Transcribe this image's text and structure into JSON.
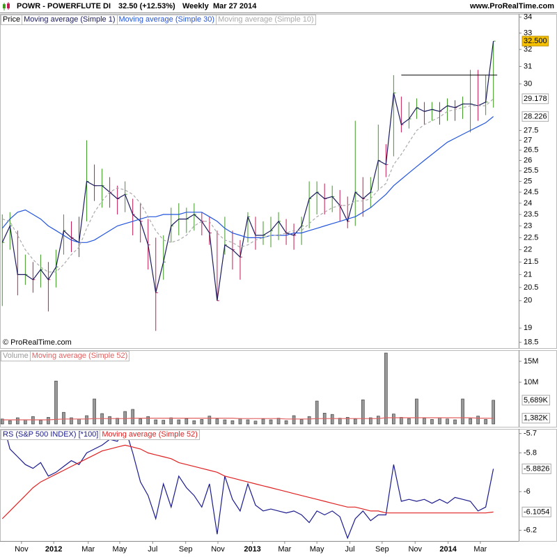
{
  "header": {
    "ticker": "POWR - POWERFLUTE DI",
    "quote": "32.50 (+12.53%)",
    "period": "Weekly",
    "date": "Mar 27 2014",
    "site": "www.ProRealTime.com",
    "copyright": "© ProRealTime.com"
  },
  "chart_data": [
    {
      "type": "ohlc",
      "name": "Price",
      "log": true,
      "up_color": "#3c9a22",
      "down_color": "#c41a52",
      "ylim": [
        18.3,
        34.2
      ],
      "xlim": [
        -0.3,
        67.3
      ],
      "yticks": [
        34,
        33,
        32,
        31,
        30,
        27.5,
        27,
        26.5,
        26,
        25.5,
        25,
        24.5,
        24,
        23.5,
        23,
        22.5,
        22,
        21.5,
        21,
        20.5,
        20,
        19,
        18.5
      ],
      "high": [
        23.5,
        23.6,
        22.8,
        21.8,
        21.5,
        21.8,
        21.5,
        22,
        23.5,
        23.2,
        23.4,
        27,
        25.8,
        25.6,
        25.2,
        24.8,
        25,
        24.2,
        24,
        23.3,
        22.5,
        22.6,
        23.8,
        24,
        23.8,
        24,
        23.6,
        23.4,
        22.8,
        23.4,
        22.8,
        22.4,
        23.6,
        23.4,
        23.2,
        23.4,
        23.6,
        23.3,
        23.1,
        23.4,
        25,
        25,
        24.9,
        24.8,
        24.6,
        24.3,
        28,
        25.2,
        25.2,
        27.8,
        26.8,
        30.5,
        29.3,
        29,
        29.2,
        29,
        29,
        29,
        29.2,
        29.1,
        29.3,
        30.8,
        30.8,
        30.5,
        32.5
      ],
      "low": [
        19.8,
        22,
        20.2,
        20.6,
        20.3,
        20.5,
        19.6,
        20.5,
        21.8,
        21.9,
        21.7,
        23.2,
        24.1,
        23.8,
        23.8,
        23.5,
        23.6,
        22.6,
        22.3,
        21.2,
        18.9,
        20.8,
        22.3,
        22.6,
        22.7,
        22.8,
        22.6,
        22.2,
        20,
        21.8,
        21.2,
        20.8,
        22.3,
        22,
        22.2,
        22.1,
        22.4,
        22.2,
        22,
        22.2,
        22.9,
        23.5,
        23.5,
        23.6,
        23.2,
        22.9,
        23,
        23.4,
        23.8,
        24.6,
        25.2,
        26.2,
        27.4,
        27.6,
        28.1,
        27.8,
        28,
        27.8,
        28,
        28,
        28.1,
        27.4,
        28,
        28.3,
        28.7
      ],
      "trendline": {
        "value": 30.5,
        "x": [
          52,
          64.5
        ]
      },
      "series": [
        {
          "name": "Moving average (Simple 1)",
          "color": "#1a1a5e",
          "last_label": "32.500",
          "values": [
            22.3,
            23,
            21,
            21,
            20.8,
            21.2,
            20.8,
            21.3,
            22.8,
            22.5,
            22.3,
            25,
            24.8,
            24.8,
            24.5,
            24.2,
            24.4,
            23.5,
            23.2,
            22.2,
            20.3,
            21.5,
            23,
            23.3,
            23.3,
            23.5,
            23.2,
            22.7,
            20,
            22.2,
            22,
            21.7,
            23.4,
            22.6,
            22.6,
            22.8,
            23.2,
            22.7,
            22.6,
            23,
            24.2,
            24.5,
            24.2,
            24.3,
            23.9,
            23.2,
            24.5,
            24.2,
            24.5,
            26,
            25.8,
            29.5,
            27.8,
            28.1,
            28.7,
            28.5,
            28.6,
            28.5,
            28.8,
            28.7,
            28.9,
            28.9,
            28.8,
            29,
            32.5
          ]
        },
        {
          "name": "Moving average (Simple 30)",
          "color": "#2255dd",
          "values": [
            22.9,
            23.3,
            23.6,
            23.7,
            23.5,
            23.3,
            23.0,
            22.8,
            22.6,
            22.4,
            22.3,
            22.3,
            22.4,
            22.6,
            22.8,
            23.0,
            23.1,
            23.2,
            23.3,
            23.4,
            23.4,
            23.5,
            23.5,
            23.5,
            23.6,
            23.6,
            23.6,
            23.4,
            23.2,
            22.9,
            22.7,
            22.6,
            22.5,
            22.5,
            22.5,
            22.6,
            22.6,
            22.6,
            22.7,
            22.7,
            22.8,
            22.9,
            23.0,
            23.1,
            23.2,
            23.3,
            23.4,
            23.6,
            23.8,
            24.1,
            24.4,
            24.8,
            25.1,
            25.4,
            25.7,
            26.0,
            26.3,
            26.6,
            26.9,
            27.1,
            27.3,
            27.5,
            27.7,
            27.9,
            28.226
          ]
        },
        {
          "name": "Moving average (Simple 10)",
          "color": "#aaaaaa",
          "dashed": true,
          "values": [
            23.3,
            23.2,
            22.6,
            22.0,
            21.6,
            21.3,
            21.1,
            21.1,
            21.4,
            21.8,
            22.1,
            22.9,
            23.6,
            24.1,
            24.5,
            24.7,
            24.6,
            24.4,
            24.0,
            23.4,
            22.8,
            22.4,
            22.3,
            22.4,
            22.6,
            23.0,
            23.2,
            23.2,
            22.7,
            22.4,
            22.3,
            22.1,
            22.2,
            22.4,
            22.5,
            22.6,
            22.6,
            22.7,
            22.8,
            22.8,
            23.1,
            23.4,
            23.6,
            23.8,
            23.9,
            23.9,
            24.1,
            24.1,
            24.2,
            24.6,
            24.9,
            25.8,
            26.3,
            26.9,
            27.5,
            27.8,
            28.0,
            28.2,
            28.5,
            28.6,
            28.7,
            28.8,
            28.8,
            28.8,
            29.178
          ]
        }
      ]
    },
    {
      "type": "bar",
      "name": "Volume",
      "color": "#999999",
      "ylim": [
        -0.67,
        17.67
      ],
      "xlim": [
        -0.3,
        67.3
      ],
      "yticks": [
        {
          "value": 15,
          "label": "15M"
        },
        {
          "value": 10,
          "label": "10M"
        }
      ],
      "values": [
        1.2,
        0.8,
        1.5,
        1.0,
        1.8,
        0.9,
        1.6,
        10.3,
        2.8,
        1.5,
        1.2,
        2.0,
        6.0,
        2.5,
        1.8,
        1.4,
        3.0,
        3.5,
        1.2,
        1.8,
        1.0,
        0.9,
        1.5,
        1.0,
        1.3,
        0.8,
        1.1,
        1.9,
        1.2,
        1.0,
        0.8,
        1.3,
        1.0,
        0.7,
        1.2,
        1.0,
        1.4,
        0.8,
        2.0,
        1.1,
        1.8,
        5.5,
        2.6,
        2.3,
        1.4,
        1.6,
        1.2,
        5.8,
        1.5,
        1.9,
        17.0,
        2.4,
        1.6,
        1.3,
        6.0,
        1.4,
        1.1,
        1.5,
        1.2,
        1.0,
        6.0,
        1.3,
        1.9,
        1.1,
        5.689
      ],
      "last_label": "5,689K",
      "series": [
        {
          "name": "Moving average (Simple 52)",
          "color": "#e06060",
          "last_label": "1,382K",
          "values": [
            1.0,
            1.0,
            1.0,
            1.0,
            1.0,
            1.0,
            1.0,
            1.1,
            1.2,
            1.2,
            1.2,
            1.2,
            1.3,
            1.3,
            1.3,
            1.3,
            1.3,
            1.4,
            1.4,
            1.4,
            1.4,
            1.4,
            1.4,
            1.4,
            1.4,
            1.4,
            1.4,
            1.4,
            1.4,
            1.4,
            1.4,
            1.3,
            1.3,
            1.3,
            1.3,
            1.3,
            1.3,
            1.2,
            1.2,
            1.2,
            1.2,
            1.3,
            1.3,
            1.3,
            1.3,
            1.3,
            1.3,
            1.3,
            1.3,
            1.3,
            1.5,
            1.5,
            1.5,
            1.5,
            1.5,
            1.5,
            1.5,
            1.5,
            1.5,
            1.5,
            1.5,
            1.5,
            1.4,
            1.4,
            1.382
          ]
        }
      ]
    },
    {
      "type": "line",
      "ylim": [
        -6.255,
        -5.676
      ],
      "xlim": [
        -0.3,
        67.3
      ],
      "yticks": [
        -5.7,
        -5.8,
        -6,
        -6.2
      ],
      "xticks": [
        {
          "value": 2.5,
          "label": "Nov"
        },
        {
          "value": 6.7,
          "label": "2012"
        },
        {
          "value": 11.2,
          "label": "Mar"
        },
        {
          "value": 15.3,
          "label": "May"
        },
        {
          "value": 19.6,
          "label": "Jul"
        },
        {
          "value": 23.9,
          "label": "Sep"
        },
        {
          "value": 28.1,
          "label": "Nov"
        },
        {
          "value": 32.6,
          "label": "2013"
        },
        {
          "value": 36.8,
          "label": "Mar"
        },
        {
          "value": 41.0,
          "label": "May"
        },
        {
          "value": 45.3,
          "label": "Jul"
        },
        {
          "value": 49.5,
          "label": "Sep"
        },
        {
          "value": 53.8,
          "label": "Nov"
        },
        {
          "value": 58.1,
          "label": "2014"
        },
        {
          "value": 62.3,
          "label": "Mar"
        }
      ],
      "series": [
        {
          "name": "RS (S&P 500 INDEX) [*100]",
          "color": "#1a1a8e",
          "values": [
            -5.63,
            -5.78,
            -5.82,
            -5.86,
            -5.88,
            -5.85,
            -5.92,
            -5.9,
            -5.87,
            -5.84,
            -5.86,
            -5.8,
            -5.78,
            -5.76,
            -5.73,
            -5.74,
            -5.67,
            -5.8,
            -5.95,
            -6.02,
            -6.14,
            -5.96,
            -6.08,
            -5.92,
            -5.98,
            -6.02,
            -6.08,
            -5.96,
            -6.22,
            -5.92,
            -6.04,
            -6.1,
            -5.96,
            -6.07,
            -6.1,
            -6.09,
            -6.1,
            -6.11,
            -6.1,
            -6.12,
            -6.16,
            -6.1,
            -6.12,
            -6.1,
            -6.13,
            -6.24,
            -6.14,
            -6.1,
            -6.15,
            -6.12,
            -6.12,
            -5.86,
            -6.05,
            -6.04,
            -6.05,
            -6.04,
            -6.06,
            -6.04,
            -6.06,
            -6.03,
            -6.04,
            -6.05,
            -6.1,
            -6.08,
            -5.8826
          ]
        },
        {
          "name": "Moving average (Simple 52)",
          "color": "#e02020",
          "values": [
            -6.14,
            -6.1,
            -6.06,
            -6.02,
            -5.98,
            -5.95,
            -5.93,
            -5.91,
            -5.89,
            -5.87,
            -5.85,
            -5.83,
            -5.81,
            -5.79,
            -5.78,
            -5.77,
            -5.76,
            -5.77,
            -5.78,
            -5.8,
            -5.81,
            -5.82,
            -5.83,
            -5.85,
            -5.86,
            -5.87,
            -5.88,
            -5.89,
            -5.9,
            -5.92,
            -5.93,
            -5.94,
            -5.95,
            -5.96,
            -5.97,
            -5.98,
            -5.99,
            -6.0,
            -6.01,
            -6.02,
            -6.03,
            -6.04,
            -6.05,
            -6.06,
            -6.07,
            -6.08,
            -6.08,
            -6.09,
            -6.1,
            -6.1,
            -6.11,
            -6.11,
            -6.11,
            -6.11,
            -6.11,
            -6.11,
            -6.11,
            -6.11,
            -6.11,
            -6.11,
            -6.11,
            -6.11,
            -6.11,
            -6.11,
            -6.1054
          ]
        }
      ]
    }
  ]
}
